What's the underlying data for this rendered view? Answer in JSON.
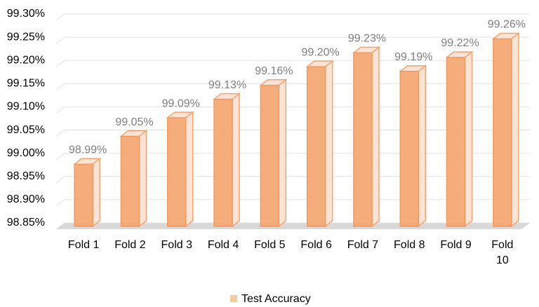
{
  "chart_data": {
    "type": "bar3d",
    "categories": [
      "Fold 1",
      "Fold 2",
      "Fold 3",
      "Fold 4",
      "Fold 5",
      "Fold 6",
      "Fold 7",
      "Fold 8",
      "Fold 9",
      "Fold 10"
    ],
    "series": [
      {
        "name": "Test Accuracy",
        "color": "#f4a46e",
        "values": [
          98.99,
          99.05,
          99.09,
          99.13,
          99.16,
          99.2,
          99.23,
          99.19,
          99.22,
          99.26
        ],
        "value_labels": [
          "98.99%",
          "99.05%",
          "99.09%",
          "99.13%",
          "99.16%",
          "99.20%",
          "99.23%",
          "99.19%",
          "99.22%",
          "99.26%"
        ]
      }
    ],
    "ylim": [
      98.85,
      99.3
    ],
    "yticks": [
      {
        "value": 98.85,
        "label": "98.85%"
      },
      {
        "value": 98.9,
        "label": "98.90%"
      },
      {
        "value": 98.95,
        "label": "98.95%"
      },
      {
        "value": 99.0,
        "label": "99.00%"
      },
      {
        "value": 99.05,
        "label": "99.05%"
      },
      {
        "value": 99.1,
        "label": "99.10%"
      },
      {
        "value": 99.15,
        "label": "99.15%"
      },
      {
        "value": 99.2,
        "label": "99.20%"
      },
      {
        "value": 99.25,
        "label": "99.25%"
      },
      {
        "value": 99.3,
        "label": "99.30%"
      }
    ],
    "grid": true,
    "legend": "bottom"
  }
}
